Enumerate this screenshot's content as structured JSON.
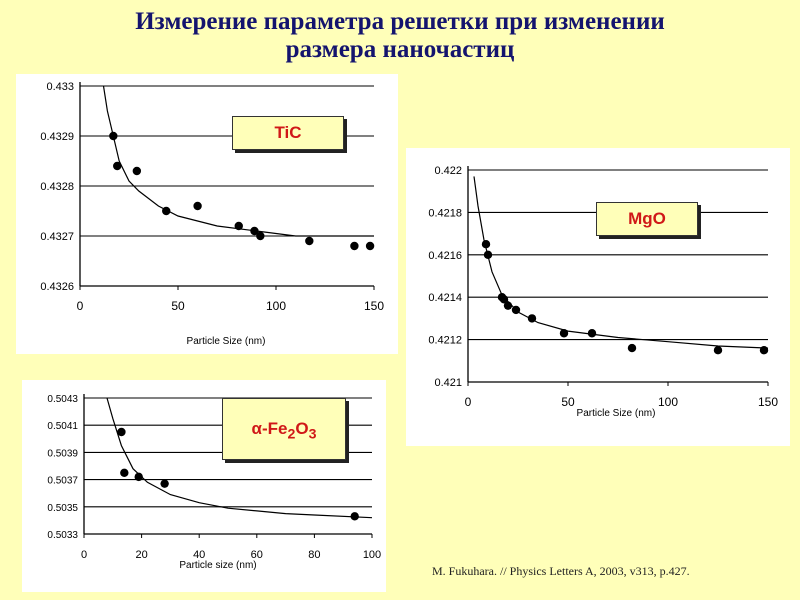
{
  "title": {
    "line1": "Измерение параметра решетки при изменении",
    "line2": "размера  наночастиц"
  },
  "citation": "M. Fukuhara. // Physics Letters A, 2003, v313, p.427.",
  "colors": {
    "background": "#ffffb9",
    "title": "#14146e",
    "label": "#d01818"
  },
  "chart_data": [
    {
      "type": "scatter",
      "id": "tic",
      "label": "TiC",
      "xlabel": "Particle Size (nm)",
      "ylabel": "",
      "xlim": [
        0,
        150
      ],
      "ylim": [
        0.4326,
        0.433
      ],
      "x_ticks": [
        "0",
        "50",
        "100",
        "150"
      ],
      "y_ticks": [
        "0.4326",
        "0.4327",
        "0.4328",
        "0.4329",
        "0.433"
      ],
      "grid": "horizontal",
      "points": [
        {
          "x": 17,
          "y": 0.4329
        },
        {
          "x": 19,
          "y": 0.43284
        },
        {
          "x": 29,
          "y": 0.43283
        },
        {
          "x": 44,
          "y": 0.43275
        },
        {
          "x": 60,
          "y": 0.43276
        },
        {
          "x": 81,
          "y": 0.43272
        },
        {
          "x": 89,
          "y": 0.43271
        },
        {
          "x": 92,
          "y": 0.4327
        },
        {
          "x": 117,
          "y": 0.43269
        },
        {
          "x": 140,
          "y": 0.43268
        },
        {
          "x": 148,
          "y": 0.43268
        }
      ],
      "curve": [
        {
          "x": 12,
          "y": 0.433
        },
        {
          "x": 14,
          "y": 0.43295
        },
        {
          "x": 17,
          "y": 0.4329
        },
        {
          "x": 20,
          "y": 0.43285
        },
        {
          "x": 25,
          "y": 0.43281
        },
        {
          "x": 30,
          "y": 0.43279
        },
        {
          "x": 40,
          "y": 0.43276
        },
        {
          "x": 50,
          "y": 0.43274
        },
        {
          "x": 70,
          "y": 0.43272
        },
        {
          "x": 90,
          "y": 0.43271
        },
        {
          "x": 110,
          "y": 0.4327
        },
        {
          "x": 150,
          "y": 0.4327
        }
      ]
    },
    {
      "type": "scatter",
      "id": "mgo",
      "label": "MgO",
      "xlabel": "Particle Size (nm)",
      "ylabel": "",
      "xlim": [
        0,
        150
      ],
      "ylim": [
        0.421,
        0.422
      ],
      "x_ticks": [
        "0",
        "50",
        "100",
        "150"
      ],
      "y_ticks": [
        "0.421",
        "0.4212",
        "0.4214",
        "0.4216",
        "0.4218",
        "0.422"
      ],
      "grid": "horizontal",
      "points": [
        {
          "x": 9,
          "y": 0.42165
        },
        {
          "x": 10,
          "y": 0.4216
        },
        {
          "x": 17,
          "y": 0.4214
        },
        {
          "x": 18,
          "y": 0.42139
        },
        {
          "x": 20,
          "y": 0.42136
        },
        {
          "x": 24,
          "y": 0.42134
        },
        {
          "x": 32,
          "y": 0.4213
        },
        {
          "x": 48,
          "y": 0.42123
        },
        {
          "x": 62,
          "y": 0.42123
        },
        {
          "x": 82,
          "y": 0.42116
        },
        {
          "x": 125,
          "y": 0.42115
        },
        {
          "x": 148,
          "y": 0.42115
        }
      ],
      "curve": [
        {
          "x": 3,
          "y": 0.42197
        },
        {
          "x": 5,
          "y": 0.42183
        },
        {
          "x": 8,
          "y": 0.42167
        },
        {
          "x": 12,
          "y": 0.42152
        },
        {
          "x": 17,
          "y": 0.42141
        },
        {
          "x": 25,
          "y": 0.42133
        },
        {
          "x": 35,
          "y": 0.42128
        },
        {
          "x": 50,
          "y": 0.42124
        },
        {
          "x": 75,
          "y": 0.42121
        },
        {
          "x": 100,
          "y": 0.42119
        },
        {
          "x": 125,
          "y": 0.42117
        },
        {
          "x": 150,
          "y": 0.42116
        }
      ]
    },
    {
      "type": "scatter",
      "id": "fe2o3",
      "label": "α-Fe₂O₃",
      "label_base": "α-Fe",
      "label_sub1": "2",
      "label_mid": "O",
      "label_sub2": "3",
      "xlabel": "Particle size (nm)",
      "ylabel": "",
      "xlim": [
        0,
        100
      ],
      "ylim": [
        0.5033,
        0.5043
      ],
      "x_ticks": [
        "0",
        "20",
        "40",
        "60",
        "80",
        "100"
      ],
      "y_ticks": [
        "0.5033",
        "0.5035",
        "0.5037",
        "0.5039",
        "0.5041",
        "0.5043"
      ],
      "grid": "horizontal",
      "points": [
        {
          "x": 13,
          "y": 0.50405
        },
        {
          "x": 14,
          "y": 0.50375
        },
        {
          "x": 19,
          "y": 0.50372
        },
        {
          "x": 28,
          "y": 0.50367
        },
        {
          "x": 94,
          "y": 0.50343
        }
      ],
      "curve": [
        {
          "x": 8,
          "y": 0.5043
        },
        {
          "x": 10,
          "y": 0.50415
        },
        {
          "x": 13,
          "y": 0.50395
        },
        {
          "x": 17,
          "y": 0.50378
        },
        {
          "x": 22,
          "y": 0.50368
        },
        {
          "x": 30,
          "y": 0.50359
        },
        {
          "x": 40,
          "y": 0.50353
        },
        {
          "x": 50,
          "y": 0.50349
        },
        {
          "x": 60,
          "y": 0.50347
        },
        {
          "x": 70,
          "y": 0.50345
        },
        {
          "x": 80,
          "y": 0.50344
        },
        {
          "x": 100,
          "y": 0.50342
        }
      ]
    }
  ]
}
